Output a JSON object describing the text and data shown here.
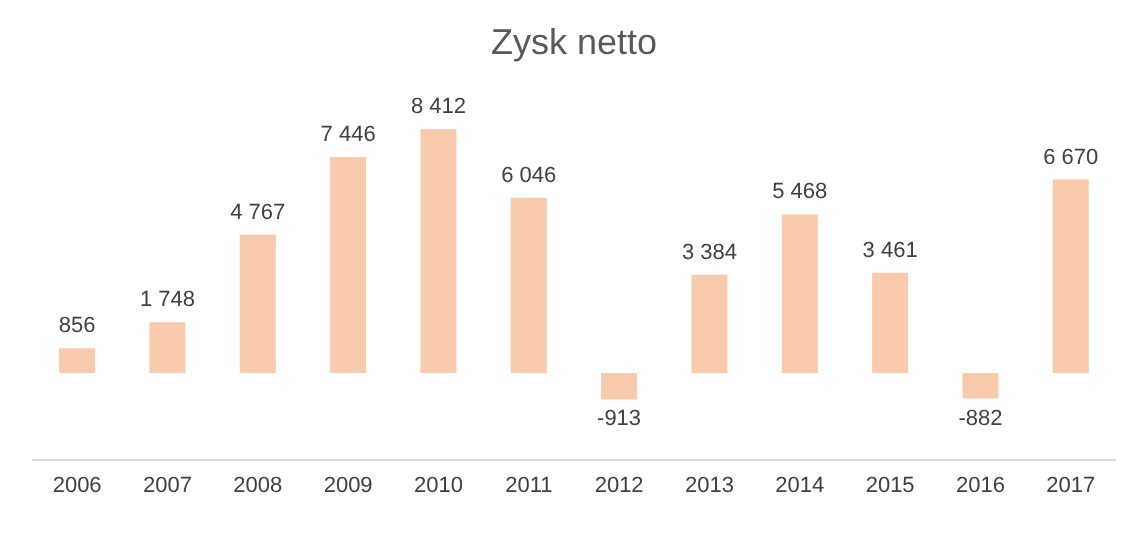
{
  "chart_data": {
    "type": "bar",
    "title": "Zysk netto",
    "categories": [
      "2006",
      "2007",
      "2008",
      "2009",
      "2010",
      "2011",
      "2012",
      "2013",
      "2014",
      "2015",
      "2016",
      "2017"
    ],
    "values": [
      856,
      1748,
      4767,
      7446,
      8412,
      6046,
      -913,
      3384,
      5468,
      3461,
      -882,
      6670
    ],
    "value_labels": [
      "856",
      "1 748",
      "4 767",
      "7 446",
      "8 412",
      "6 046",
      "-913",
      "3 384",
      "5 468",
      "3 461",
      "-882",
      "6 670"
    ],
    "color": "#f8cbad"
  }
}
